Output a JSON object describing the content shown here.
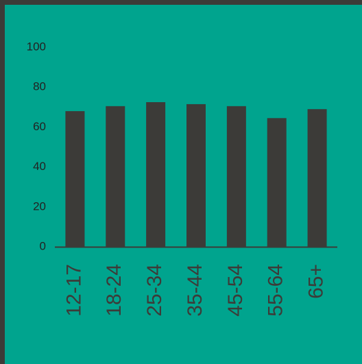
{
  "chart_data": {
    "type": "bar",
    "categories": [
      "12-17",
      "18-24",
      "25-34",
      "35-44",
      "45-54",
      "55-64",
      "65+"
    ],
    "values": [
      68,
      70.5,
      72.5,
      71.5,
      70.5,
      64.5,
      69
    ],
    "yticks": [
      0,
      20,
      40,
      60,
      80,
      100
    ],
    "ylim": [
      0,
      100
    ],
    "grid": false,
    "title": "",
    "xlabel": "",
    "ylabel": "",
    "colors": {
      "background": "#00a48e",
      "frame": "#3c3b38",
      "bar": "#3c3b38",
      "axis": "#3c3b38",
      "tick_label": "#222222",
      "category_label": "#3c3b38"
    }
  }
}
